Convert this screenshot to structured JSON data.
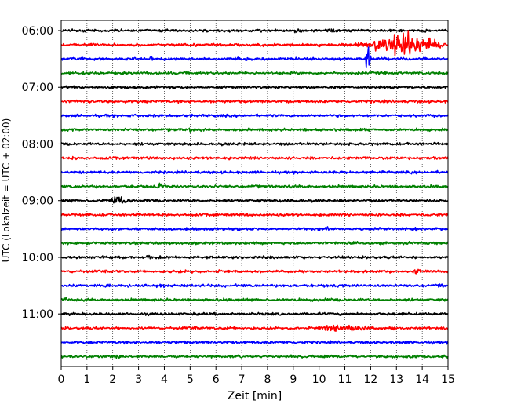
{
  "chart_data": {
    "type": "line",
    "title": "",
    "xlabel": "Zeit  [min]",
    "ylabel": "UTC (Lokalzeit = UTC + 02:00)",
    "xlim": [
      0,
      15
    ],
    "x_ticks": [
      "0",
      "1",
      "2",
      "3",
      "4",
      "5",
      "6",
      "7",
      "8",
      "9",
      "10",
      "11",
      "12",
      "13",
      "14",
      "15"
    ],
    "y_ticks": [
      "06:00",
      "07:00",
      "08:00",
      "09:00",
      "10:00",
      "11:00"
    ],
    "row_interval_min": 15,
    "grid": "vertical dotted",
    "legend": "none",
    "colors_cycle": [
      "#000000",
      "#ff0000",
      "#0000ff",
      "#008000"
    ],
    "rows": [
      {
        "start": "06:00",
        "color": "#000000",
        "events": [
          {
            "minute": 9.1,
            "amp": 0.25
          }
        ]
      },
      {
        "start": "06:15",
        "color": "#ff0000",
        "events": [
          {
            "minute": 7.8,
            "amp": 0.3
          },
          {
            "minute": 12.25,
            "amp": 0.9
          },
          {
            "minute": 13.3,
            "amp": 1.0,
            "duration": 1.8
          }
        ]
      },
      {
        "start": "06:30",
        "color": "#0000ff",
        "events": [
          {
            "minute": 3.5,
            "amp": 0.3
          },
          {
            "minute": 11.9,
            "amp": 1.3
          }
        ]
      },
      {
        "start": "06:45",
        "color": "#008000",
        "events": []
      },
      {
        "start": "07:00",
        "color": "#000000",
        "events": []
      },
      {
        "start": "07:15",
        "color": "#ff0000",
        "events": []
      },
      {
        "start": "07:30",
        "color": "#0000ff",
        "events": []
      },
      {
        "start": "07:45",
        "color": "#008000",
        "events": [
          {
            "minute": 5.0,
            "amp": 0.2
          }
        ]
      },
      {
        "start": "08:00",
        "color": "#000000",
        "events": [
          {
            "minute": 14.6,
            "amp": 0.25
          }
        ]
      },
      {
        "start": "08:15",
        "color": "#ff0000",
        "events": [
          {
            "minute": 10.8,
            "amp": 0.2
          }
        ]
      },
      {
        "start": "08:30",
        "color": "#0000ff",
        "events": []
      },
      {
        "start": "08:45",
        "color": "#008000",
        "events": [
          {
            "minute": 3.8,
            "amp": 0.3
          }
        ]
      },
      {
        "start": "09:00",
        "color": "#000000",
        "events": [
          {
            "minute": 2.3,
            "amp": 0.35,
            "duration": 0.6
          }
        ]
      },
      {
        "start": "09:15",
        "color": "#ff0000",
        "events": [
          {
            "minute": 2.9,
            "amp": 0.25
          }
        ]
      },
      {
        "start": "09:30",
        "color": "#0000ff",
        "events": [
          {
            "minute": 10.3,
            "amp": 0.3
          },
          {
            "minute": 13.7,
            "amp": 0.3
          }
        ]
      },
      {
        "start": "09:45",
        "color": "#008000",
        "events": []
      },
      {
        "start": "10:00",
        "color": "#000000",
        "events": [
          {
            "minute": 3.4,
            "amp": 0.3
          }
        ]
      },
      {
        "start": "10:15",
        "color": "#ff0000",
        "events": [
          {
            "minute": 13.8,
            "amp": 0.5
          }
        ]
      },
      {
        "start": "10:30",
        "color": "#0000ff",
        "events": [
          {
            "minute": 14.8,
            "amp": 0.25
          }
        ]
      },
      {
        "start": "10:45",
        "color": "#008000",
        "events": [
          {
            "minute": 0.2,
            "amp": 0.2
          }
        ]
      },
      {
        "start": "11:00",
        "color": "#000000",
        "events": []
      },
      {
        "start": "11:15",
        "color": "#ff0000",
        "events": [
          {
            "minute": 11.0,
            "amp": 0.35,
            "duration": 1.2
          }
        ]
      },
      {
        "start": "11:30",
        "color": "#0000ff",
        "events": []
      },
      {
        "start": "11:45",
        "color": "#008000",
        "events": [
          {
            "minute": 14.9,
            "amp": 0.25
          }
        ]
      }
    ]
  }
}
